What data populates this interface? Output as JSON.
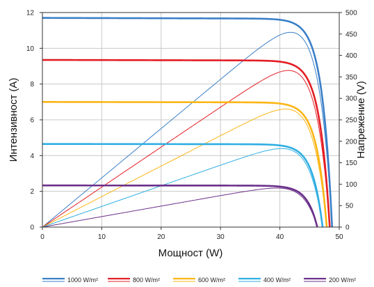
{
  "chart_data": {
    "type": "line",
    "xlabel": "Мощност (W)",
    "ylabel": "Интензивност (A)",
    "y2label": "Напрежение (V)",
    "xlim": [
      0,
      50
    ],
    "ylim": [
      0,
      12
    ],
    "y2lim": [
      0,
      500
    ],
    "x_ticks": [
      "0",
      "10",
      "20",
      "30",
      "40",
      "50"
    ],
    "y_ticks": [
      "0",
      "2",
      "4",
      "6",
      "8",
      "10",
      "12"
    ],
    "y2_ticks": [
      "0",
      "50",
      "100",
      "150",
      "200",
      "250",
      "300",
      "350",
      "400",
      "450",
      "500"
    ],
    "grid": true,
    "legend_position": "bottom",
    "series": [
      {
        "name": "1000 W/m²",
        "color": "#3a7fc8",
        "isc": 11.7,
        "voc": 48.8,
        "pmax_v": 41.2,
        "pmax": 454
      },
      {
        "name": "800 W/m²",
        "color": "#e31d24",
        "isc": 9.35,
        "voc": 48.4,
        "pmax_v": 41.5,
        "pmax": 365
      },
      {
        "name": "600 W/m²",
        "color": "#fbb515",
        "isc": 7.0,
        "voc": 47.9,
        "pmax_v": 41.0,
        "pmax": 275
      },
      {
        "name": "400 W/m²",
        "color": "#2eaee3",
        "isc": 4.65,
        "voc": 47.2,
        "pmax_v": 40.6,
        "pmax": 183
      },
      {
        "name": "200 W/m²",
        "color": "#6a2f8a",
        "isc": 2.33,
        "voc": 46.3,
        "pmax_v": 40.4,
        "pmax": 91
      }
    ]
  }
}
